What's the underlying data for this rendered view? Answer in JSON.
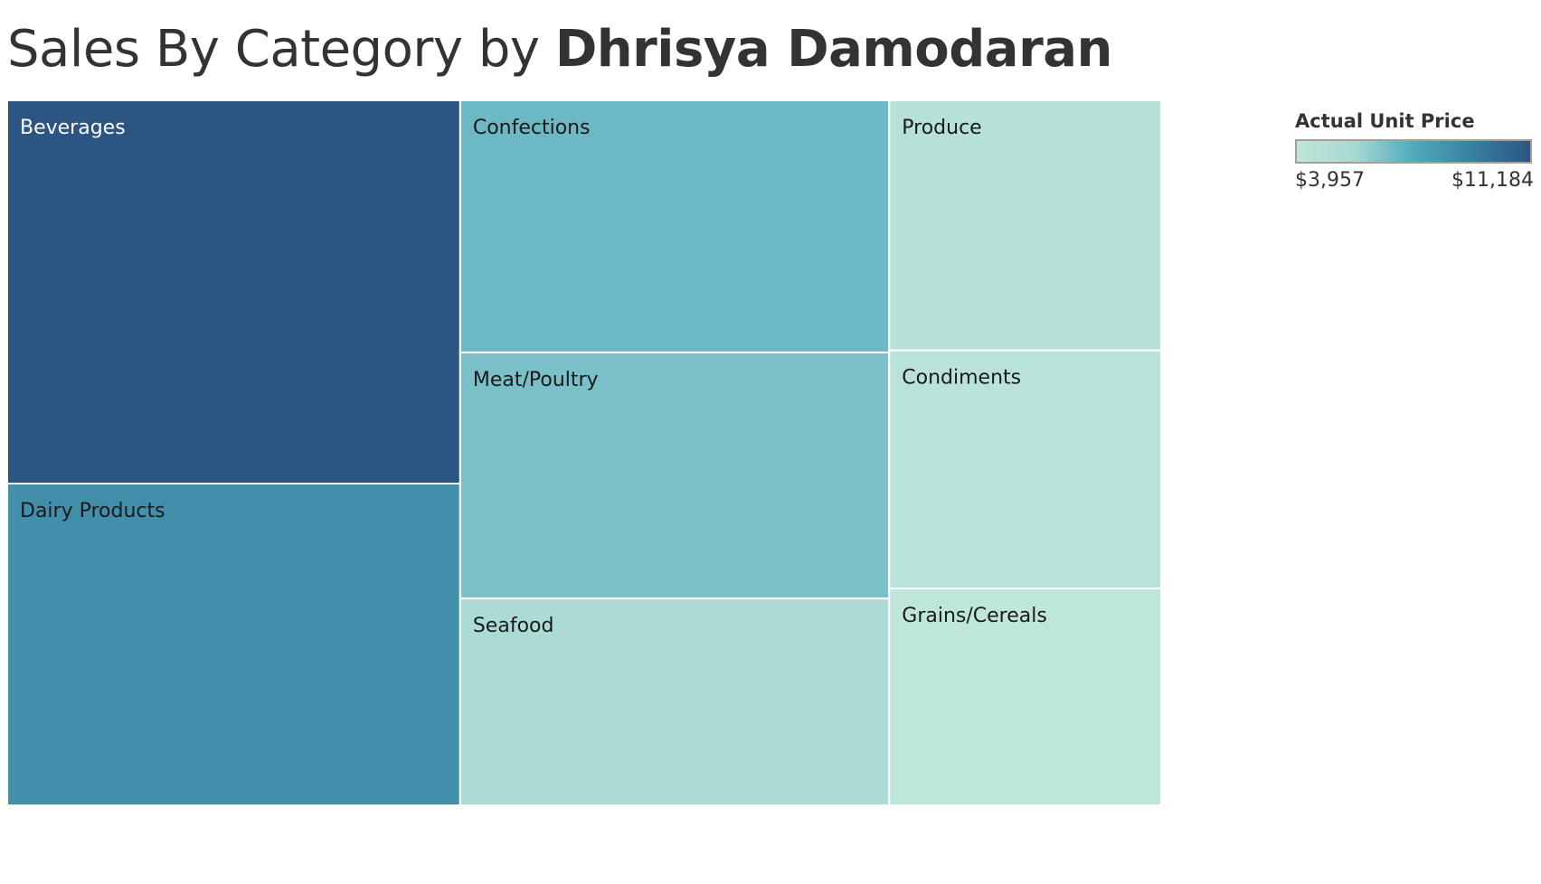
{
  "title": {
    "prefix": "Sales By Category by ",
    "author": "Dhrisya Damodaran"
  },
  "chart_data": {
    "type": "treemap",
    "size_measure": "Sales",
    "color_measure": "Actual Unit Price",
    "color_range": [
      3957,
      11184
    ],
    "items": [
      {
        "category": "Beverages",
        "size": 268000,
        "color_value": 11184
      },
      {
        "category": "Dairy Products",
        "size": 225000,
        "color_value": 8700
      },
      {
        "category": "Confections",
        "size": 167000,
        "color_value": 7000
      },
      {
        "category": "Meat/Poultry",
        "size": 163000,
        "color_value": 6700
      },
      {
        "category": "Seafood",
        "size": 137000,
        "color_value": 5500
      },
      {
        "category": "Produce",
        "size": 105000,
        "color_value": 4700
      },
      {
        "category": "Condiments",
        "size": 100000,
        "color_value": 4400
      },
      {
        "category": "Grains/Cereals",
        "size": 91000,
        "color_value": 3957
      }
    ]
  },
  "legend": {
    "title": "Actual Unit Price",
    "min_label": "$3,957",
    "max_label": "$11,184",
    "gradient": [
      "#bfe6da",
      "#a7d9d3",
      "#52a9be",
      "#37809f",
      "#2c5583"
    ]
  }
}
